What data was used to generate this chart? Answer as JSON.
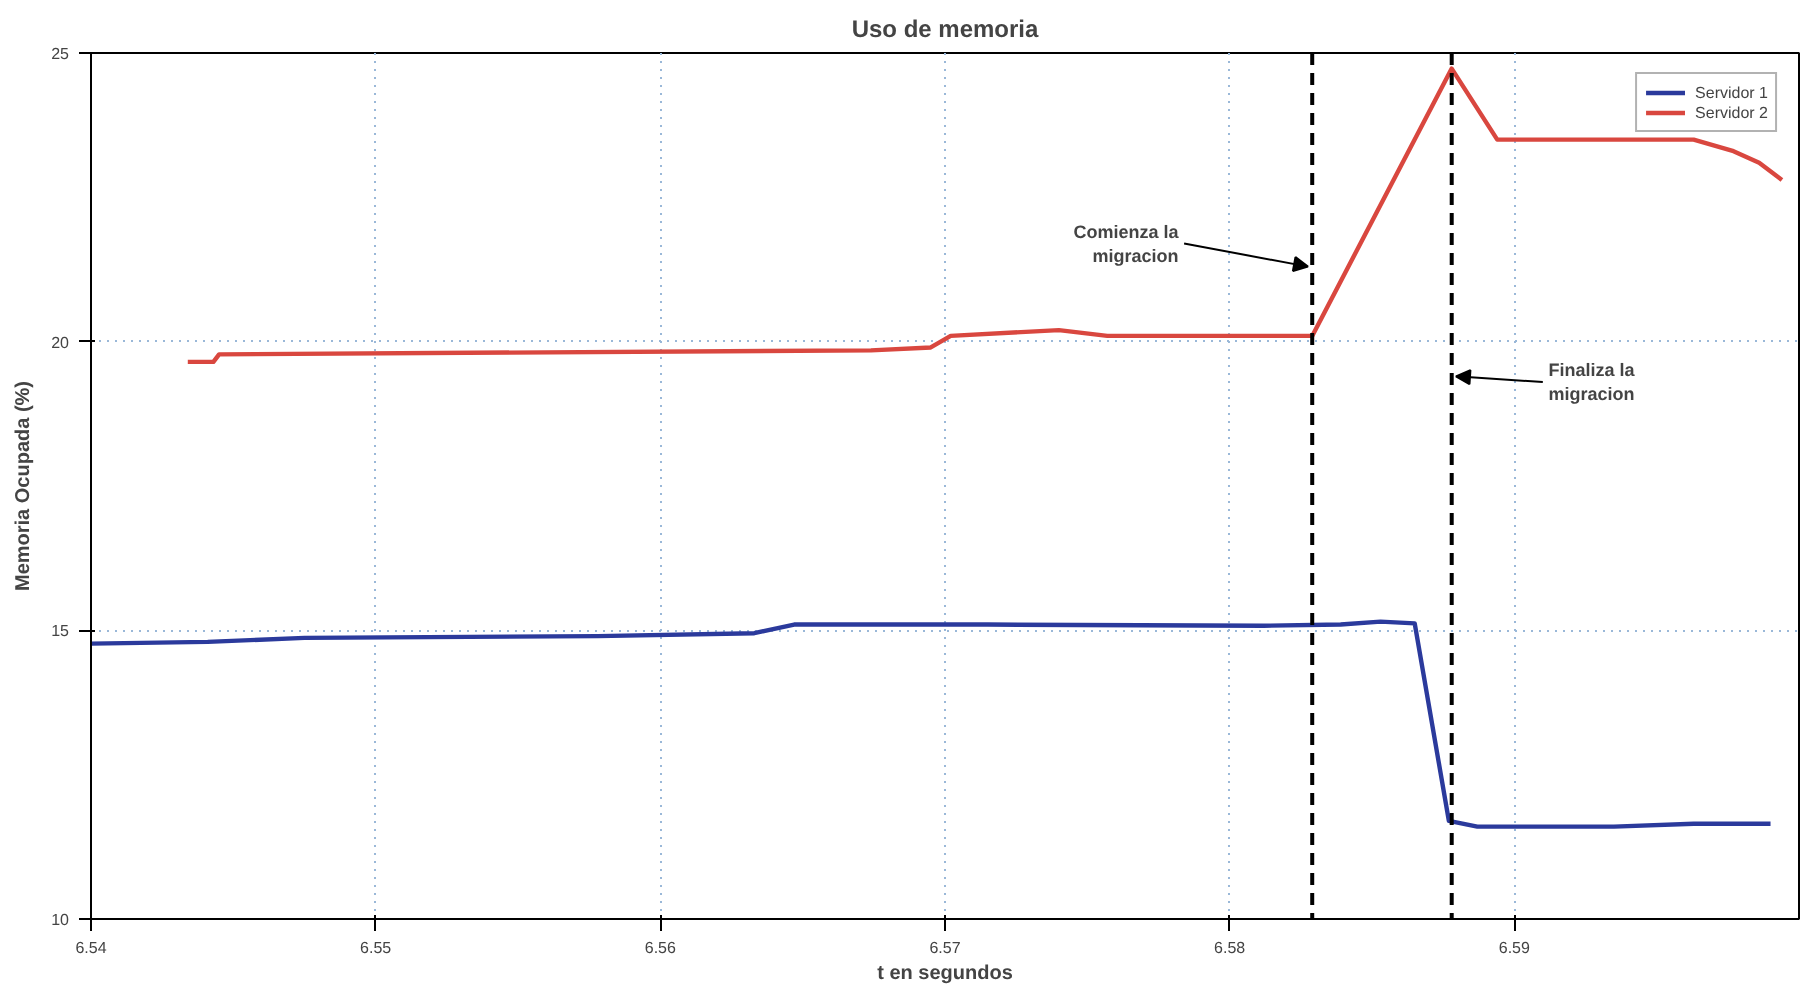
{
  "chart_data": {
    "type": "line",
    "title": "Uso de memoria",
    "xlabel": "t en segundos",
    "ylabel": "Memoria Ocupada (%)",
    "xlim": [
      6.54,
      6.6
    ],
    "xticks": [
      6.54,
      6.55,
      6.56,
      6.57,
      6.58,
      6.59
    ],
    "ylim": [
      10,
      25
    ],
    "yticks": [
      10,
      15,
      20,
      25
    ],
    "grid": true,
    "legend": "top right",
    "line_style": "solid",
    "marker": "none",
    "series": [
      {
        "name": "Servidor 1",
        "color": "#2b3a9c",
        "x": [
          6.54,
          6.5441,
          6.5475,
          6.5578,
          6.5633,
          6.5647,
          6.5715,
          6.5812,
          6.5839,
          6.5853,
          6.5865,
          6.5877,
          6.5887,
          6.5935,
          6.5963,
          6.599
        ],
        "values": [
          14.77,
          14.8,
          14.87,
          14.9,
          14.95,
          15.1,
          15.1,
          15.08,
          15.1,
          15.15,
          15.12,
          11.7,
          11.6,
          11.6,
          11.65,
          11.65
        ]
      },
      {
        "name": "Servidor 2",
        "color": "#d9473f",
        "x": [
          6.5434,
          6.5443,
          6.5445,
          6.5674,
          6.5695,
          6.5702,
          6.574,
          6.5757,
          6.5829,
          6.5878,
          6.5894,
          6.5915,
          6.5963,
          6.5977,
          6.5986,
          6.5994
        ],
        "values": [
          19.65,
          19.65,
          19.78,
          19.85,
          19.9,
          20.1,
          20.2,
          20.1,
          20.1,
          24.73,
          23.5,
          23.5,
          23.5,
          23.3,
          23.1,
          22.8
        ]
      }
    ],
    "ref_lines": [
      {
        "axis": "x",
        "value": 6.5829,
        "color": "#000000",
        "line_style": "dashed"
      },
      {
        "axis": "x",
        "value": 6.5878,
        "color": "#000000",
        "line_style": "dashed"
      }
    ],
    "annotations": [
      {
        "text": "Comienza la\nmigracion",
        "x": 6.5829,
        "y": 21.3
      },
      {
        "text": "Finaliza la\nmigracion",
        "x": 6.5878,
        "y": 19.4
      }
    ]
  }
}
